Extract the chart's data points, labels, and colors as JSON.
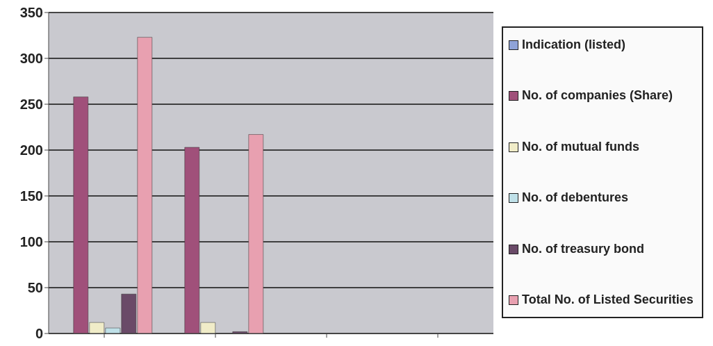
{
  "chart_data": {
    "type": "bar",
    "categories": [
      null,
      null,
      null,
      null
    ],
    "series": [
      {
        "name": "Indication (listed)",
        "color": "#8fa3d8",
        "values": [
          null,
          null,
          null,
          null
        ]
      },
      {
        "name": "No. of companies (Share)",
        "color": "#a0507a",
        "values": [
          258,
          203,
          null,
          null
        ]
      },
      {
        "name": "No. of mutual funds",
        "color": "#f0ecc8",
        "values": [
          12,
          12,
          null,
          null
        ]
      },
      {
        "name": "No. of debentures",
        "color": "#bfe0e8",
        "values": [
          6,
          null,
          null,
          null
        ]
      },
      {
        "name": "No. of treasury bond",
        "color": "#6a4a68",
        "values": [
          43,
          2,
          null,
          null
        ]
      },
      {
        "name": "Total No. of Listed Securities",
        "color": "#e8a0b0",
        "values": [
          323,
          217,
          null,
          null
        ]
      }
    ],
    "ylim": [
      0,
      350
    ],
    "yticks": [
      0,
      50,
      100,
      150,
      200,
      250,
      300,
      350
    ],
    "grid": "y",
    "legend": "right"
  }
}
